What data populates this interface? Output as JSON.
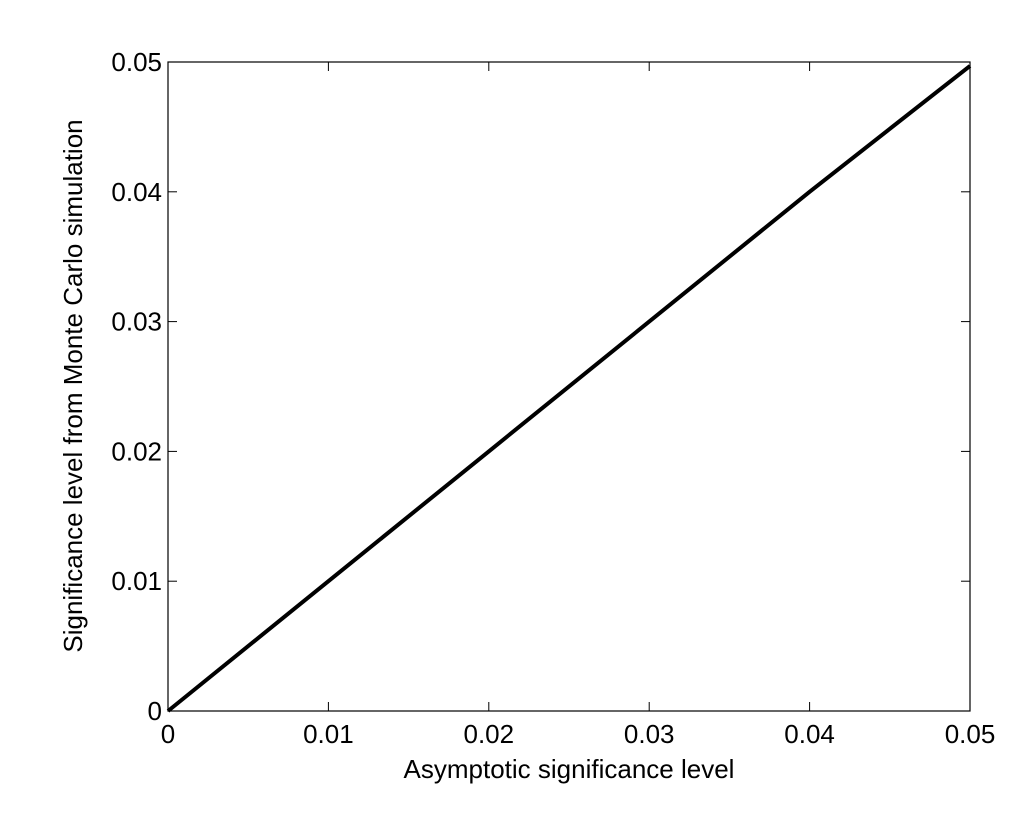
{
  "chart_data": {
    "type": "line",
    "xlabel": "Asymptotic significance level",
    "ylabel": "Significance level from Monte Carlo simulation",
    "x": [
      0,
      0.01,
      0.02,
      0.03,
      0.04,
      0.05
    ],
    "series": [
      {
        "color": "#000000",
        "values": [
          0,
          0.01,
          0.02,
          0.03,
          0.04,
          0.0497
        ]
      }
    ],
    "xlim": [
      0,
      0.05
    ],
    "ylim": [
      0,
      0.05
    ],
    "xticks": [
      0,
      0.01,
      0.02,
      0.03,
      0.04,
      0.05
    ],
    "yticks": [
      0,
      0.01,
      0.02,
      0.03,
      0.04,
      0.05
    ],
    "grid": false
  }
}
